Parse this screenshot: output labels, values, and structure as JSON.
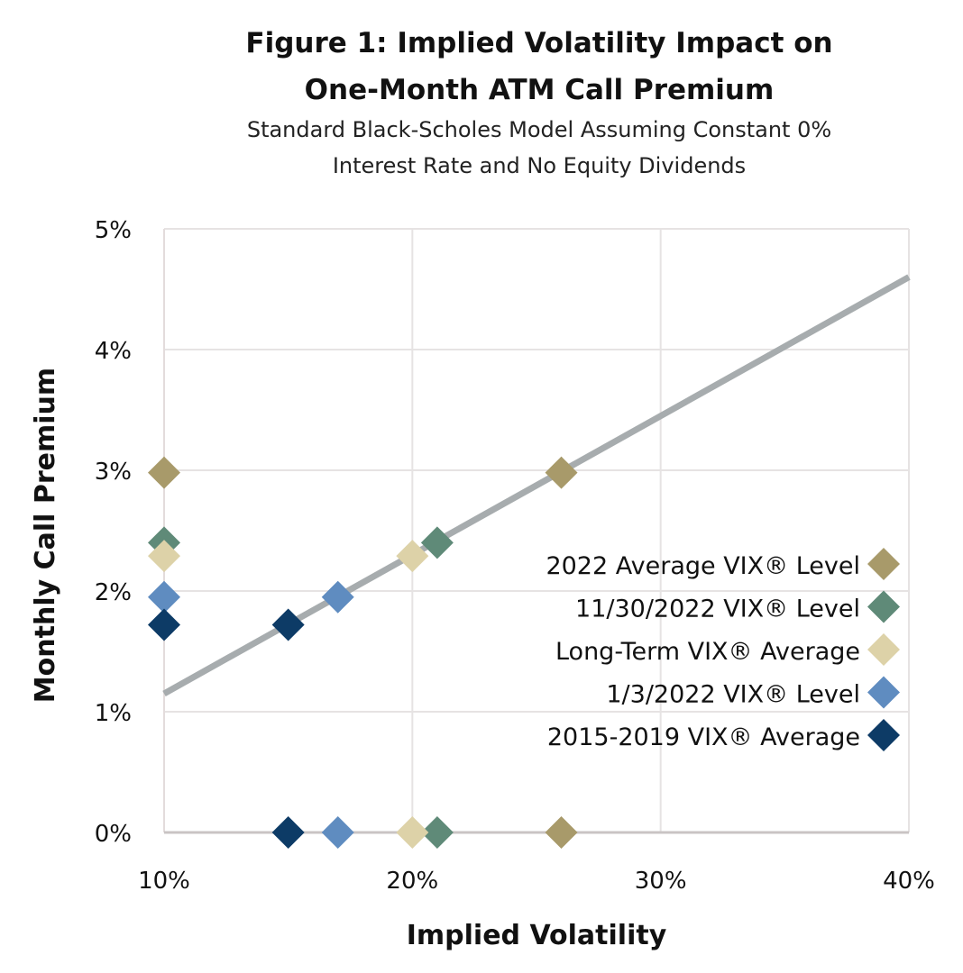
{
  "chart_data": {
    "type": "scatter",
    "title_line1": "Figure 1: Implied Volatility Impact on",
    "title_line2": "One-Month ATM Call Premium",
    "subtitle_line1": "Standard Black-Scholes Model Assuming Constant 0%",
    "subtitle_line2": "Interest Rate and No Equity Dividends",
    "xlabel": "Implied Volatility",
    "ylabel": "Monthly Call Premium",
    "xlim": [
      10,
      40
    ],
    "ylim": [
      0,
      5
    ],
    "xticks": [
      "10%",
      "20%",
      "30%",
      "40%"
    ],
    "yticks": [
      "0%",
      "1%",
      "2%",
      "3%",
      "4%",
      "5%"
    ],
    "grid": true,
    "legend_position": "right",
    "curve": {
      "color": "#a7acae",
      "points": [
        [
          10,
          1.15
        ],
        [
          40,
          4.6
        ]
      ]
    },
    "series": [
      {
        "name": "2022 Average VIX® Level",
        "x": 26,
        "y": 2.98,
        "color": "#a89a6a"
      },
      {
        "name": "11/30/2022 VIX® Level",
        "x": 21,
        "y": 2.4,
        "color": "#5f8a78"
      },
      {
        "name": "Long-Term VIX® Average",
        "x": 20,
        "y": 2.29,
        "color": "#ddd2a8"
      },
      {
        "name": "1/3/2022 VIX® Level",
        "x": 17,
        "y": 1.95,
        "color": "#5f8cc0"
      },
      {
        "name": "2015-2019 VIX® Average",
        "x": 15,
        "y": 1.72,
        "color": "#0d3b66"
      }
    ]
  }
}
